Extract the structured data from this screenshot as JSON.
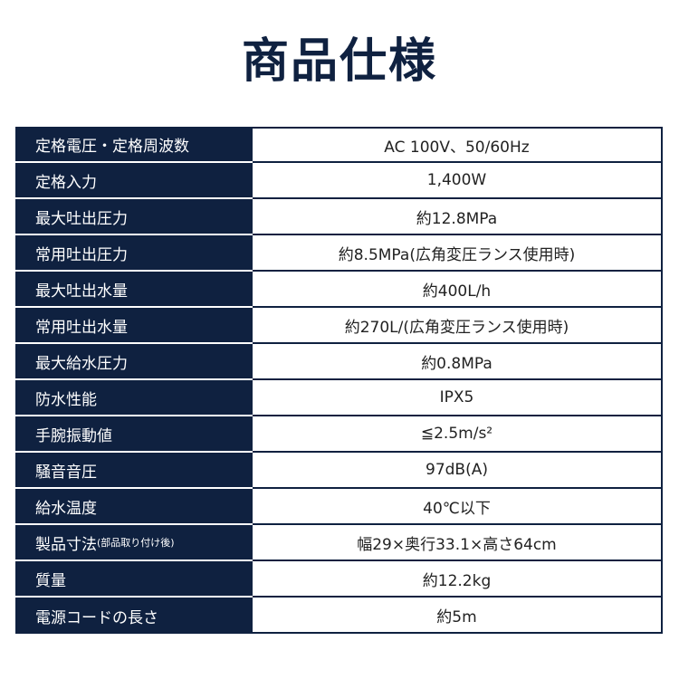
{
  "title": "商品仕様",
  "colors": {
    "header_bg": "#0f2140",
    "header_text": "#ffffff",
    "value_text": "#222222"
  },
  "specs": [
    {
      "label": "定格電圧・定格周波数",
      "value": "AC 100V、50/60Hz"
    },
    {
      "label": "定格入力",
      "value": "1,400W"
    },
    {
      "label": "最大吐出圧力",
      "value": "約12.8MPa"
    },
    {
      "label": "常用吐出圧力",
      "value": "約8.5MPa(広角変圧ランス使用時)"
    },
    {
      "label": "最大吐出水量",
      "value": "約400L/h"
    },
    {
      "label": "常用吐出水量",
      "value": "約270L/(広角変圧ランス使用時)"
    },
    {
      "label": "最大給水圧力",
      "value": "約0.8MPa"
    },
    {
      "label": "防水性能",
      "value": "IPX5"
    },
    {
      "label": "手腕振動値",
      "value": "≦2.5m/s²"
    },
    {
      "label": "騒音音圧",
      "value": "97dB(A)"
    },
    {
      "label": "給水温度",
      "value": "40℃以下"
    },
    {
      "label": "製品寸法",
      "label_note": "(部品取り付け後)",
      "value": "幅29×奥行33.1×高さ64cm"
    },
    {
      "label": "質量",
      "value": "約12.2kg"
    },
    {
      "label": "電源コードの長さ",
      "value": "約5m"
    }
  ]
}
